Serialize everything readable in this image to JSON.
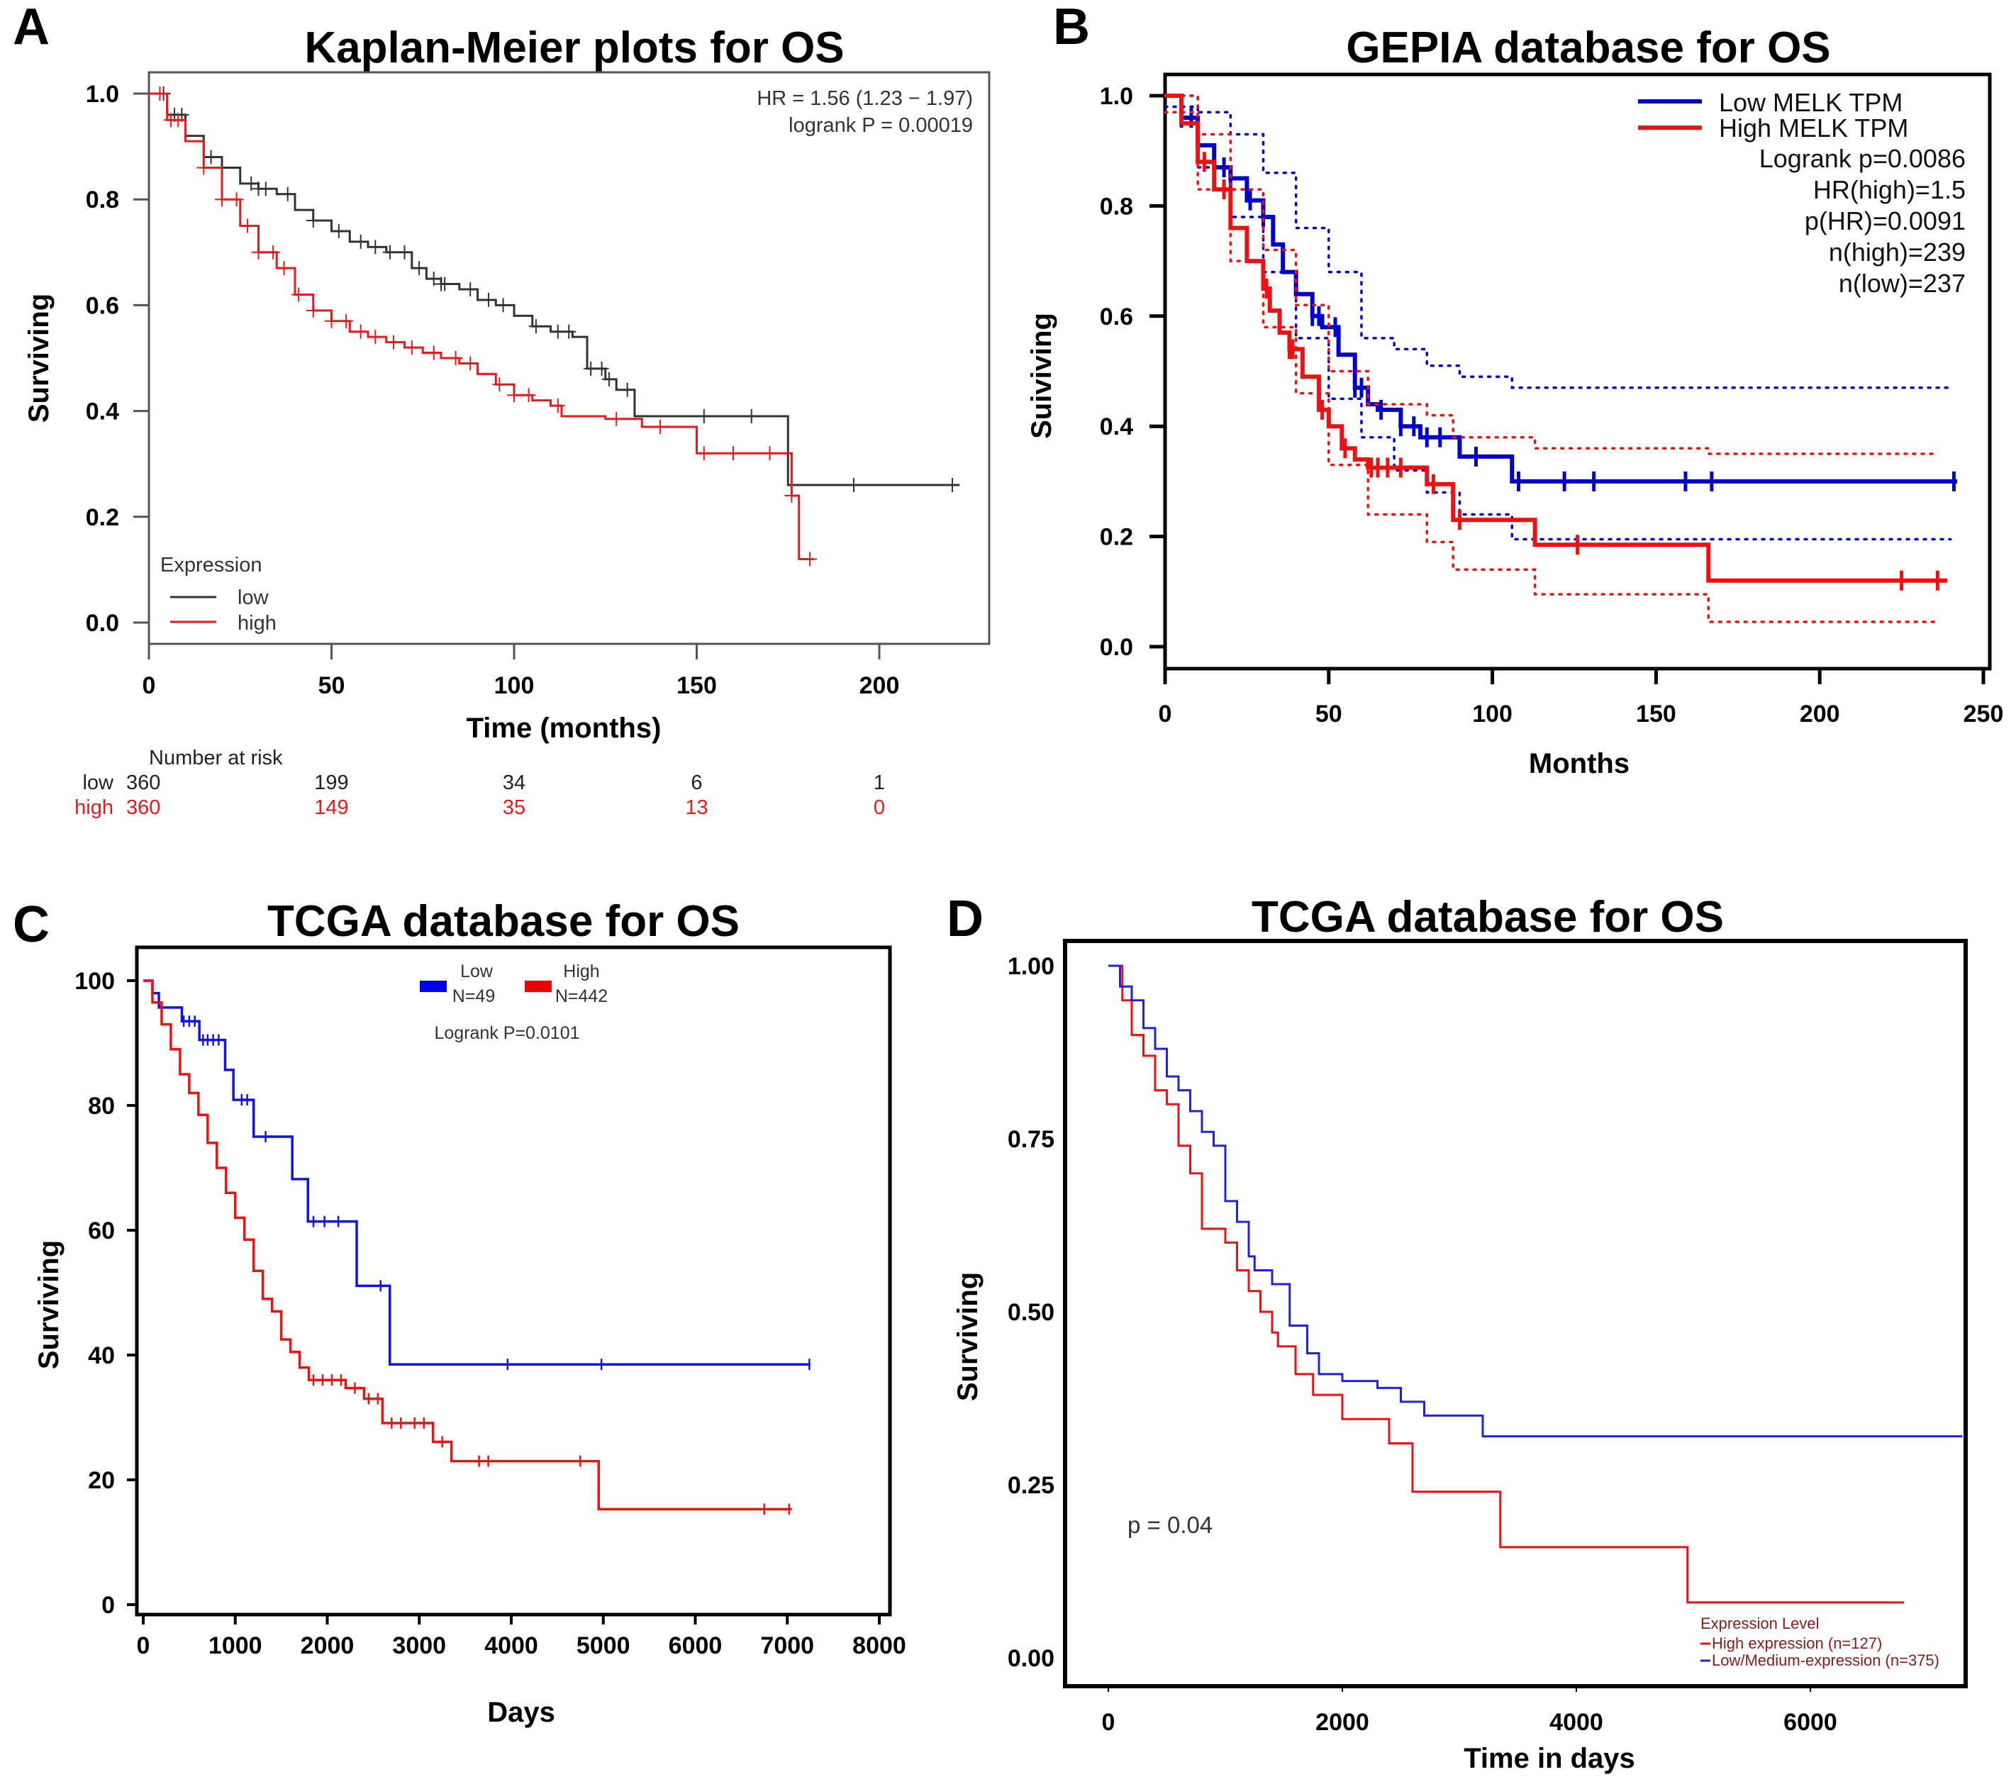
{
  "figure": {
    "panels": [
      "A",
      "B",
      "C",
      "D"
    ]
  },
  "chart_data": [
    {
      "panel": "A",
      "type": "line",
      "subtype": "kaplan-meier",
      "title": "Kaplan-Meier plots for OS",
      "xlabel": "Time (months)",
      "ylabel": "Surviving",
      "xlim": [
        0,
        228
      ],
      "ylim": [
        -0.06,
        1.08
      ],
      "xticks": [
        0,
        50,
        100,
        150,
        200
      ],
      "yticks": [
        0.0,
        0.2,
        0.4,
        0.6,
        0.8,
        1.0
      ],
      "ytick_labels": [
        "0.0",
        "0.2",
        "0.4",
        "0.6",
        "0.8",
        "1.0"
      ],
      "grid": false,
      "annotations": [
        "HR = 1.56 (1.23 − 1.97)",
        "logrank P = 0.00019"
      ],
      "legend": {
        "title": "Expression",
        "position": "bottom-left",
        "entries": [
          "low",
          "high"
        ]
      },
      "series": [
        {
          "name": "low",
          "color": "#333333",
          "x": [
            0,
            5,
            10,
            15,
            20,
            25,
            30,
            35,
            40,
            45,
            50,
            55,
            60,
            65,
            68,
            72,
            76,
            80,
            85,
            90,
            95,
            100,
            105,
            110,
            116,
            118,
            120,
            125,
            128,
            133,
            175,
            222
          ],
          "y": [
            1.0,
            0.96,
            0.92,
            0.88,
            0.86,
            0.83,
            0.82,
            0.81,
            0.78,
            0.76,
            0.74,
            0.72,
            0.71,
            0.7,
            0.7,
            0.67,
            0.65,
            0.64,
            0.63,
            0.61,
            0.6,
            0.58,
            0.56,
            0.55,
            0.54,
            0.54,
            0.48,
            0.46,
            0.44,
            0.39,
            0.26,
            0.26
          ],
          "censor_x": [
            4,
            7,
            9,
            17,
            28,
            30,
            32,
            38,
            45,
            52,
            58,
            62,
            66,
            70,
            74,
            78,
            80,
            81,
            88,
            93,
            97,
            106,
            112,
            115,
            121,
            124,
            126,
            131,
            152,
            165,
            193,
            220
          ]
        },
        {
          "name": "high",
          "color": "#e41a1c",
          "x": [
            0,
            5,
            10,
            15,
            20,
            25,
            30,
            35,
            40,
            45,
            50,
            55,
            60,
            65,
            70,
            75,
            80,
            85,
            90,
            95,
            100,
            105,
            110,
            113,
            125,
            135,
            150,
            175,
            176,
            178,
            182
          ],
          "y": [
            1.0,
            0.95,
            0.91,
            0.86,
            0.8,
            0.75,
            0.7,
            0.67,
            0.62,
            0.59,
            0.57,
            0.55,
            0.54,
            0.53,
            0.52,
            0.51,
            0.5,
            0.49,
            0.47,
            0.45,
            0.43,
            0.42,
            0.41,
            0.39,
            0.385,
            0.37,
            0.32,
            0.32,
            0.24,
            0.12,
            0.12
          ],
          "censor_x": [
            3,
            6,
            8,
            15,
            20,
            24,
            27,
            30,
            34,
            37,
            41,
            45,
            50,
            54,
            58,
            62,
            67,
            72,
            78,
            84,
            88,
            96,
            100,
            104,
            112,
            128,
            140,
            152,
            160,
            170,
            176,
            181
          ]
        }
      ],
      "risk_table": {
        "title": "Number at risk",
        "times": [
          0,
          50,
          100,
          150,
          200
        ],
        "rows": [
          {
            "label": "low",
            "color": "#222222",
            "values": [
              "360",
              "199",
              "34",
              "6",
              "1"
            ]
          },
          {
            "label": "high",
            "color": "#e41a1c",
            "values": [
              "360",
              "149",
              "35",
              "13",
              "0"
            ]
          }
        ]
      }
    },
    {
      "panel": "B",
      "type": "line",
      "subtype": "kaplan-meier",
      "title": "GEPIA database for OS",
      "xlabel": "Months",
      "ylabel": "Suiviving",
      "xlim": [
        0,
        252
      ],
      "ylim": [
        -0.06,
        1.07
      ],
      "xticks": [
        0,
        50,
        100,
        150,
        200,
        250
      ],
      "yticks": [
        0.0,
        0.2,
        0.4,
        0.6,
        0.8,
        1.0
      ],
      "ytick_labels": [
        "0.0",
        "0.2",
        "0.4",
        "0.6",
        "0.8",
        "1.0"
      ],
      "grid": false,
      "legend": {
        "position": "top-right",
        "entries": [
          "Low MELK TPM",
          "High MELK TPM"
        ]
      },
      "annotations": [
        "Logrank p=0.0086",
        "HR(high)=1.5",
        "p(HR)=0.0091",
        "n(high)=239",
        "n(low)=237"
      ],
      "series": [
        {
          "name": "Low MELK TPM",
          "color": "#0000cc",
          "x": [
            0,
            5,
            10,
            15,
            20,
            25,
            30,
            33,
            36,
            40,
            45,
            48,
            53,
            58,
            62,
            65,
            72,
            78,
            90,
            106,
            242
          ],
          "y": [
            1.0,
            0.96,
            0.91,
            0.87,
            0.85,
            0.81,
            0.78,
            0.73,
            0.68,
            0.64,
            0.6,
            0.58,
            0.53,
            0.47,
            0.44,
            0.43,
            0.4,
            0.38,
            0.345,
            0.3,
            0.3
          ],
          "ci_upper": {
            "x": [
              0,
              10,
              20,
              30,
              40,
              50,
              60,
              70,
              80,
              90,
              106,
              240
            ],
            "y": [
              1.0,
              0.97,
              0.93,
              0.86,
              0.76,
              0.68,
              0.56,
              0.54,
              0.51,
              0.49,
              0.47,
              0.47
            ]
          },
          "ci_lower": {
            "x": [
              0,
              10,
              20,
              30,
              40,
              50,
              60,
              70,
              80,
              90,
              106,
              240
            ],
            "y": [
              0.98,
              0.87,
              0.78,
              0.68,
              0.56,
              0.45,
              0.38,
              0.32,
              0.28,
              0.24,
              0.195,
              0.195
            ]
          },
          "censor_x": [
            5,
            8,
            18,
            20,
            26,
            30,
            45,
            47,
            52,
            58,
            60,
            66,
            72,
            76,
            80,
            84,
            95,
            108,
            122,
            131,
            159,
            167,
            241
          ]
        },
        {
          "name": "High MELK TPM",
          "color": "#ee1111",
          "x": [
            0,
            5,
            10,
            15,
            20,
            25,
            30,
            32,
            35,
            38,
            42,
            47,
            50,
            54,
            58,
            62,
            80,
            88,
            113,
            166,
            239
          ],
          "y": [
            1.0,
            0.95,
            0.88,
            0.83,
            0.76,
            0.7,
            0.65,
            0.61,
            0.57,
            0.54,
            0.49,
            0.43,
            0.4,
            0.36,
            0.34,
            0.325,
            0.295,
            0.23,
            0.185,
            0.12,
            0.12
          ],
          "ci_upper": {
            "x": [
              0,
              10,
              20,
              30,
              40,
              50,
              62,
              80,
              88,
              113,
              166,
              235
            ],
            "y": [
              1.0,
              0.93,
              0.83,
              0.72,
              0.62,
              0.5,
              0.44,
              0.42,
              0.38,
              0.36,
              0.35,
              0.35
            ]
          },
          "ci_lower": {
            "x": [
              0,
              10,
              20,
              30,
              40,
              50,
              62,
              80,
              88,
              113,
              166,
              235
            ],
            "y": [
              0.97,
              0.83,
              0.7,
              0.58,
              0.46,
              0.33,
              0.24,
              0.19,
              0.14,
              0.095,
              0.045,
              0.045
            ]
          },
          "censor_x": [
            12,
            18,
            31,
            38,
            39,
            48,
            55,
            63,
            65,
            68,
            72,
            82,
            90,
            126,
            225,
            236
          ]
        }
      ]
    },
    {
      "panel": "C",
      "type": "line",
      "subtype": "kaplan-meier",
      "title": "TCGA database for OS",
      "xlabel": "Days",
      "ylabel": "Surviving",
      "xlim": [
        -60,
        8100
      ],
      "ylim": [
        -3,
        104
      ],
      "xticks": [
        0,
        1000,
        2000,
        3000,
        4000,
        5000,
        6000,
        7000,
        8000
      ],
      "yticks": [
        0,
        20,
        40,
        60,
        80,
        100
      ],
      "ytick_labels": [
        "0",
        "20",
        "40",
        "60",
        "80",
        "100"
      ],
      "grid": false,
      "legend": {
        "position": "top-center",
        "entries": [
          {
            "label": "Low",
            "n": "N=49",
            "color": "#0000ee"
          },
          {
            "label": "High",
            "n": "N=442",
            "color": "#ee0000"
          }
        ]
      },
      "annotations": [
        "Logrank P=0.0101"
      ],
      "series": [
        {
          "name": "Low",
          "color": "#1111ee",
          "x": [
            0,
            100,
            170,
            420,
            610,
            890,
            980,
            1200,
            1620,
            1790,
            2320,
            2680,
            7250
          ],
          "y": [
            100,
            98,
            95.7,
            93.5,
            90.5,
            85.7,
            80.9,
            75,
            68.2,
            61.4,
            51.1,
            38.5,
            38.5
          ],
          "censor_x": [
            440,
            500,
            560,
            650,
            700,
            760,
            820,
            1070,
            1130,
            1330,
            1850,
            1970,
            2120,
            2580,
            3960,
            4980,
            7240
          ]
        },
        {
          "name": "High",
          "color": "#ee1111",
          "x": [
            0,
            100,
            200,
            300,
            400,
            500,
            600,
            700,
            800,
            900,
            1000,
            1100,
            1200,
            1300,
            1400,
            1500,
            1600,
            1700,
            1800,
            1900,
            2200,
            2400,
            2600,
            3150,
            3350,
            4950,
            7050
          ],
          "y": [
            100,
            96.5,
            93,
            89,
            85,
            82,
            78.5,
            74,
            70,
            66,
            62,
            58.5,
            53.5,
            49,
            47,
            42.5,
            40.5,
            38,
            36,
            36,
            34.7,
            33,
            29.1,
            26.1,
            23,
            15.3,
            15.3
          ],
          "censor_x": [
            1850,
            1950,
            2050,
            2150,
            2300,
            2450,
            2550,
            2700,
            2800,
            2950,
            3050,
            3250,
            3650,
            3750,
            4750,
            6750,
            7020
          ]
        }
      ]
    },
    {
      "panel": "D",
      "type": "line",
      "subtype": "kaplan-meier",
      "title": "TCGA database for OS",
      "xlabel": "Time in days",
      "ylabel": "Surviving",
      "xlim": [
        -370,
        7350
      ],
      "ylim": [
        -0.034,
        1.03
      ],
      "xticks": [
        0,
        2000,
        4000,
        6000
      ],
      "yticks": [
        0.0,
        0.25,
        0.5,
        0.75,
        1.0
      ],
      "ytick_labels": [
        "0.00",
        "0.25",
        "0.50",
        "0.75",
        "1.00"
      ],
      "grid": false,
      "annotations": [
        "p = 0.04"
      ],
      "legend": {
        "title": "Expression Level",
        "position": "bottom-right",
        "entries": [
          {
            "label": "High expression (n=127)",
            "color": "#ee1111"
          },
          {
            "label": "Low/Medium-expression (n=375)",
            "color": "#2222dd"
          }
        ]
      },
      "series": [
        {
          "name": "High expression (n=127)",
          "color": "#ee1111",
          "x": [
            0,
            70,
            120,
            200,
            300,
            400,
            500,
            600,
            700,
            800,
            1000,
            1100,
            1200,
            1300,
            1400,
            1450,
            1600,
            1750,
            2000,
            2400,
            2600,
            3350,
            4950,
            6800
          ],
          "y": [
            1.0,
            1.0,
            0.95,
            0.9,
            0.87,
            0.82,
            0.8,
            0.74,
            0.7,
            0.62,
            0.6,
            0.56,
            0.53,
            0.5,
            0.47,
            0.45,
            0.41,
            0.38,
            0.345,
            0.31,
            0.24,
            0.16,
            0.08,
            0.08
          ]
        },
        {
          "name": "Low/Medium-expression (n=375)",
          "color": "#2222dd",
          "x": [
            0,
            100,
            200,
            300,
            400,
            500,
            600,
            700,
            800,
            900,
            1000,
            1100,
            1200,
            1250,
            1400,
            1550,
            1700,
            1800,
            2000,
            2300,
            2500,
            2700,
            3200,
            7300
          ],
          "y": [
            1.0,
            0.97,
            0.95,
            0.91,
            0.88,
            0.84,
            0.82,
            0.79,
            0.76,
            0.74,
            0.66,
            0.63,
            0.58,
            0.56,
            0.54,
            0.48,
            0.44,
            0.41,
            0.4,
            0.39,
            0.37,
            0.35,
            0.32,
            0.32
          ]
        }
      ]
    }
  ]
}
